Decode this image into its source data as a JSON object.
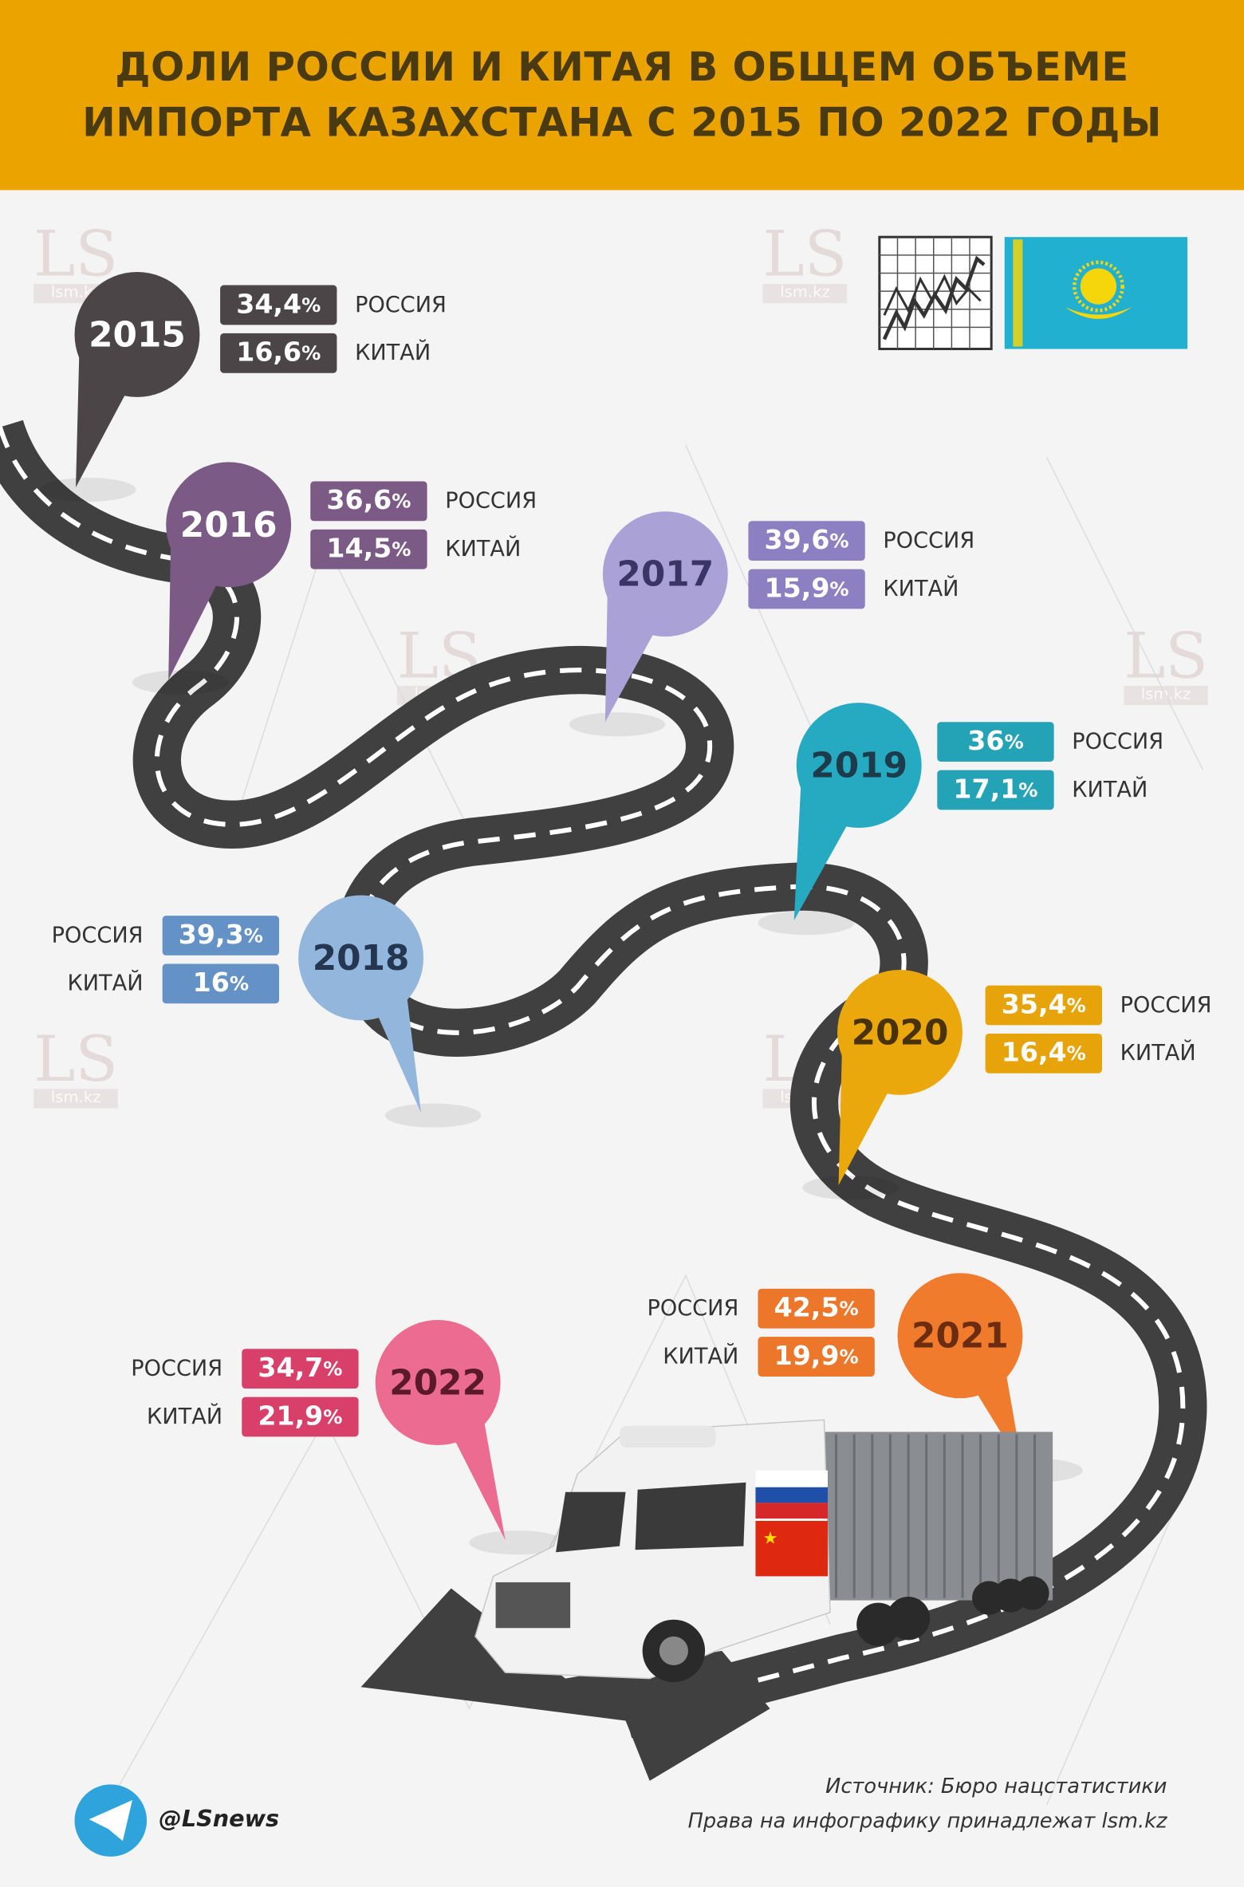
{
  "header": {
    "title_line1": "ДОЛИ РОССИИ И КИТАЯ В ОБЩЕМ ОБЪЕМЕ",
    "title_line2": "ИМПОРТА КАЗАХСТАНА С 2015 ПО 2022 ГОДЫ",
    "background": "#eba300"
  },
  "labels": {
    "russia": "РОССИЯ",
    "china": "КИТАЙ"
  },
  "years": [
    {
      "year": "2015",
      "russia": "34,4",
      "china": "16,6",
      "color": "#4b4548",
      "badge_color": "#4b4548",
      "text_color": "#ffffff"
    },
    {
      "year": "2016",
      "russia": "36,6",
      "china": "14,5",
      "color": "#7c5a86",
      "badge_color": "#7c5a86",
      "text_color": "#ffffff"
    },
    {
      "year": "2017",
      "russia": "39,6",
      "china": "15,9",
      "color": "#aaa2d6",
      "badge_color": "#8d80c2",
      "text_color": "#3b3566"
    },
    {
      "year": "2018",
      "russia": "39,3",
      "china": "16",
      "color": "#92b6dc",
      "badge_color": "#6592c6",
      "text_color": "#243650"
    },
    {
      "year": "2019",
      "russia": "36",
      "china": "17,1",
      "color": "#25aac1",
      "badge_color": "#24a3b6",
      "text_color": "#1d3b4a"
    },
    {
      "year": "2020",
      "russia": "35,4",
      "china": "16,4",
      "color": "#eaa80c",
      "badge_color": "#e6a40a",
      "text_color": "#4a3208"
    },
    {
      "year": "2021",
      "russia": "42,5",
      "china": "19,9",
      "color": "#f07b2d",
      "badge_color": "#ec772a",
      "text_color": "#6b2c10"
    },
    {
      "year": "2022",
      "russia": "34,7",
      "china": "21,9",
      "color": "#ec6b90",
      "badge_color": "#d8406a",
      "text_color": "#5a1a2a"
    }
  ],
  "percent_sign": "%",
  "icons": {
    "chart": "line-chart-icon",
    "flag": "kazakhstan-flag",
    "telegram": "telegram-icon",
    "flags_on_truck": [
      "russia-flag",
      "china-flag"
    ]
  },
  "watermark": {
    "logo": "LS",
    "site": "lsm.kz"
  },
  "footer": {
    "telegram": "@LSnews",
    "source": "Источник: Бюро нацстатистики",
    "rights": "Права на инфографику принадлежат lsm.kz"
  }
}
